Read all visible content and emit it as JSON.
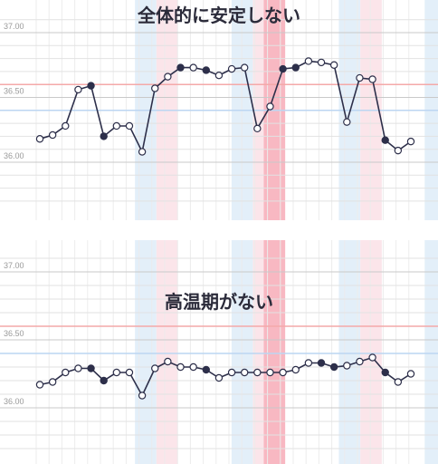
{
  "chart_data": [
    {
      "type": "line",
      "title": "全体的に安定しない",
      "y_ticks": [
        "37.00",
        "36.50",
        "36.00"
      ],
      "y_tick_values": [
        37.0,
        36.5,
        36.0
      ],
      "ylim": [
        35.7,
        37.15
      ],
      "reference_lines": [
        {
          "name": "high",
          "value": 36.6,
          "color": "#f4a9a9"
        },
        {
          "name": "low",
          "value": 36.4,
          "color": "#bcd6f2"
        }
      ],
      "filled_points": [
        6,
        7,
        18,
        19,
        20,
        30,
        31,
        39
      ],
      "values": [
        36.18,
        36.21,
        36.28,
        36.56,
        36.59,
        36.2,
        36.28,
        36.28,
        36.08,
        36.57,
        36.66,
        36.73,
        36.73,
        36.71,
        36.67,
        36.72,
        36.73,
        36.26,
        36.43,
        36.72,
        36.73,
        36.78,
        36.77,
        36.75,
        36.31,
        36.65,
        36.64,
        36.17,
        36.09,
        36.16
      ],
      "grid": true
    },
    {
      "type": "line",
      "title": "高温期がない",
      "y_ticks": [
        "37.00",
        "36.50",
        "36.00"
      ],
      "y_tick_values": [
        37.0,
        36.5,
        36.0
      ],
      "ylim": [
        35.7,
        37.15
      ],
      "reference_lines": [
        {
          "name": "high",
          "value": 36.6,
          "color": "#f4a9a9"
        },
        {
          "name": "low",
          "value": 36.4,
          "color": "#bcd6f2"
        }
      ],
      "values": [
        36.17,
        36.19,
        36.26,
        36.29,
        36.29,
        36.2,
        36.26,
        36.26,
        36.09,
        36.29,
        36.34,
        36.3,
        36.3,
        36.28,
        36.22,
        36.26,
        36.26,
        36.26,
        36.26,
        36.26,
        36.28,
        36.33,
        36.33,
        36.3,
        36.31,
        36.34,
        36.37,
        36.26,
        36.19,
        36.25
      ],
      "grid": true
    }
  ],
  "colors": {
    "line": "#2d2f4a",
    "point_filled": "#2d2f4a",
    "point_open": "#ffffff",
    "band_blue": "#e3eff9",
    "band_pink": "#fbe5ea",
    "band_red": "#f8b8c2",
    "grid": "#d8d8d8"
  }
}
